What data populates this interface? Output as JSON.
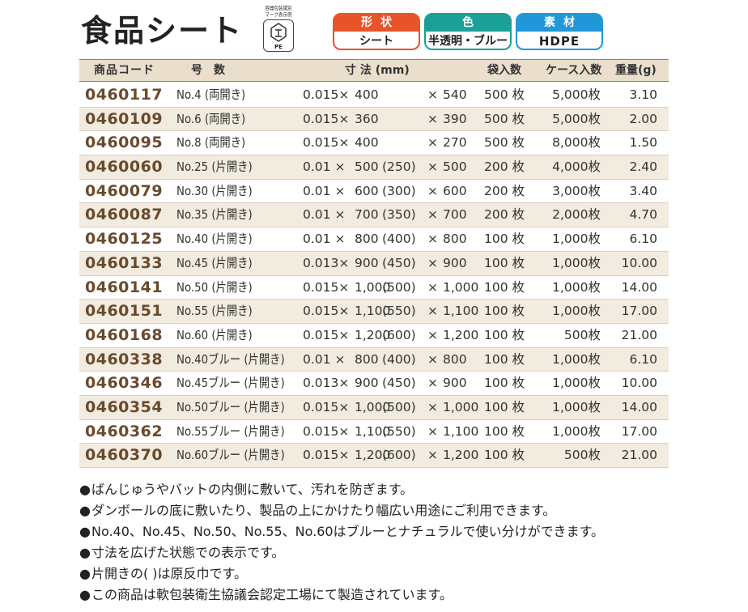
{
  "title": "食品シート",
  "recycle_mark": {
    "caption1": "容器包装識別",
    "caption2": "マーク表示例",
    "material": "PE",
    "icon": "pla-recycle-icon"
  },
  "badges": [
    {
      "label": "形状",
      "value": "シート",
      "color": "#e8542a"
    },
    {
      "label": "色",
      "value": "半透明・ブルー",
      "color": "#1aa096"
    },
    {
      "label": "素材",
      "value": "HDPE",
      "color": "#2196d8"
    }
  ],
  "table": {
    "headers": {
      "code": "商品コード",
      "number": "号数",
      "dimensions": "寸 法 (mm)",
      "per_bag": "袋入数",
      "per_case": "ケース入数",
      "weight": "重量(g)"
    },
    "rows": [
      {
        "code": "0460117",
        "number": "No.4 (両開き)",
        "thickness": "0.015×",
        "width": "400",
        "fold": "",
        "x": "×",
        "height": "540",
        "per_bag": "500 枚",
        "per_case": "5,000枚",
        "weight": "3.10"
      },
      {
        "code": "0460109",
        "number": "No.6 (両開き)",
        "thickness": "0.015×",
        "width": "360",
        "fold": "",
        "x": "×",
        "height": "390",
        "per_bag": "500 枚",
        "per_case": "5,000枚",
        "weight": "2.00"
      },
      {
        "code": "0460095",
        "number": "No.8 (両開き)",
        "thickness": "0.015×",
        "width": "400",
        "fold": "",
        "x": "×",
        "height": "270",
        "per_bag": "500 枚",
        "per_case": "8,000枚",
        "weight": "1.50"
      },
      {
        "code": "0460060",
        "number": "No.25 (片開き)",
        "thickness": "0.01 ×",
        "width": "500",
        "fold": "(250)",
        "x": "×",
        "height": "500",
        "per_bag": "200 枚",
        "per_case": "4,000枚",
        "weight": "2.40"
      },
      {
        "code": "0460079",
        "number": "No.30 (片開き)",
        "thickness": "0.01 ×",
        "width": "600",
        "fold": "(300)",
        "x": "×",
        "height": "600",
        "per_bag": "200 枚",
        "per_case": "3,000枚",
        "weight": "3.40"
      },
      {
        "code": "0460087",
        "number": "No.35 (片開き)",
        "thickness": "0.01 ×",
        "width": "700",
        "fold": "(350)",
        "x": "×",
        "height": "700",
        "per_bag": "200 枚",
        "per_case": "2,000枚",
        "weight": "4.70"
      },
      {
        "code": "0460125",
        "number": "No.40 (片開き)",
        "thickness": "0.01 ×",
        "width": "800",
        "fold": "(400)",
        "x": "×",
        "height": "800",
        "per_bag": "100 枚",
        "per_case": "1,000枚",
        "weight": "6.10"
      },
      {
        "code": "0460133",
        "number": "No.45 (片開き)",
        "thickness": "0.013×",
        "width": "900",
        "fold": "(450)",
        "x": "×",
        "height": "900",
        "per_bag": "100 枚",
        "per_case": "1,000枚",
        "weight": "10.00"
      },
      {
        "code": "0460141",
        "number": "No.50 (片開き)",
        "thickness": "0.015×",
        "width": "1,000",
        "fold": "(500)",
        "x": "×",
        "height": "1,000",
        "per_bag": "100 枚",
        "per_case": "1,000枚",
        "weight": "14.00"
      },
      {
        "code": "0460151",
        "number": "No.55 (片開き)",
        "thickness": "0.015×",
        "width": "1,100",
        "fold": "(550)",
        "x": "×",
        "height": "1,100",
        "per_bag": "100 枚",
        "per_case": "1,000枚",
        "weight": "17.00"
      },
      {
        "code": "0460168",
        "number": "No.60 (片開き)",
        "thickness": "0.015×",
        "width": "1,200",
        "fold": "(600)",
        "x": "×",
        "height": "1,200",
        "per_bag": "100 枚",
        "per_case": "500枚",
        "weight": "21.00"
      },
      {
        "code": "0460338",
        "number": "No.40ブルー (片開き)",
        "thickness": "0.01 ×",
        "width": "800",
        "fold": "(400)",
        "x": "×",
        "height": "800",
        "per_bag": "100 枚",
        "per_case": "1,000枚",
        "weight": "6.10"
      },
      {
        "code": "0460346",
        "number": "No.45ブルー (片開き)",
        "thickness": "0.013×",
        "width": "900",
        "fold": "(450)",
        "x": "×",
        "height": "900",
        "per_bag": "100 枚",
        "per_case": "1,000枚",
        "weight": "10.00"
      },
      {
        "code": "0460354",
        "number": "No.50ブルー (片開き)",
        "thickness": "0.015×",
        "width": "1,000",
        "fold": "(500)",
        "x": "×",
        "height": "1,000",
        "per_bag": "100 枚",
        "per_case": "1,000枚",
        "weight": "14.00"
      },
      {
        "code": "0460362",
        "number": "No.55ブルー (片開き)",
        "thickness": "0.015×",
        "width": "1,100",
        "fold": "(550)",
        "x": "×",
        "height": "1,100",
        "per_bag": "100 枚",
        "per_case": "1,000枚",
        "weight": "17.00"
      },
      {
        "code": "0460370",
        "number": "No.60ブルー (片開き)",
        "thickness": "0.015×",
        "width": "1,200",
        "fold": "(600)",
        "x": "×",
        "height": "1,200",
        "per_bag": "100 枚",
        "per_case": "500枚",
        "weight": "21.00"
      }
    ]
  },
  "notes": [
    "ばんじゅうやバットの内側に敷いて、汚れを防ぎます。",
    "ダンボールの底に敷いたり、製品の上にかけたり幅広い用途にご利用できます。",
    "No.40、No.45、No.50、No.55、No.60はブルーとナチュラルで使い分けができます。",
    "寸法を広げた状態での表示です。",
    "片開きの( )は原反巾です。",
    "この商品は軟包装衛生協議会認定工場にて製造されています。"
  ]
}
